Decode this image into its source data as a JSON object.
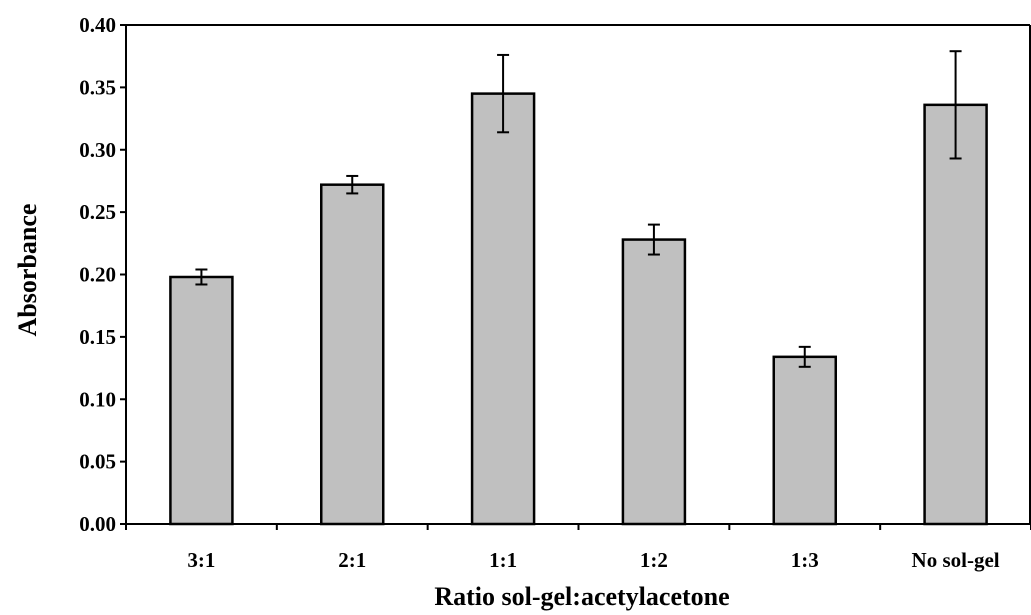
{
  "chart_data": {
    "type": "bar",
    "title": "",
    "xlabel": "Ratio sol-gel:acetylacetone",
    "ylabel": "Absorbance",
    "categories": [
      "3:1",
      "2:1",
      "1:1",
      "1:2",
      "1:3",
      "No sol-gel"
    ],
    "series": [
      {
        "values": [
          0.198,
          0.272,
          0.345,
          0.228,
          0.134,
          0.336
        ],
        "error": [
          0.006,
          0.007,
          0.031,
          0.012,
          0.008,
          0.043
        ],
        "color": "#c0c0c0"
      }
    ],
    "ylim": [
      0,
      0.4
    ],
    "yticks": [
      "0.00",
      "0.05",
      "0.10",
      "0.15",
      "0.20",
      "0.25",
      "0.30",
      "0.35",
      "0.40"
    ],
    "grid": false,
    "legend": "none"
  }
}
